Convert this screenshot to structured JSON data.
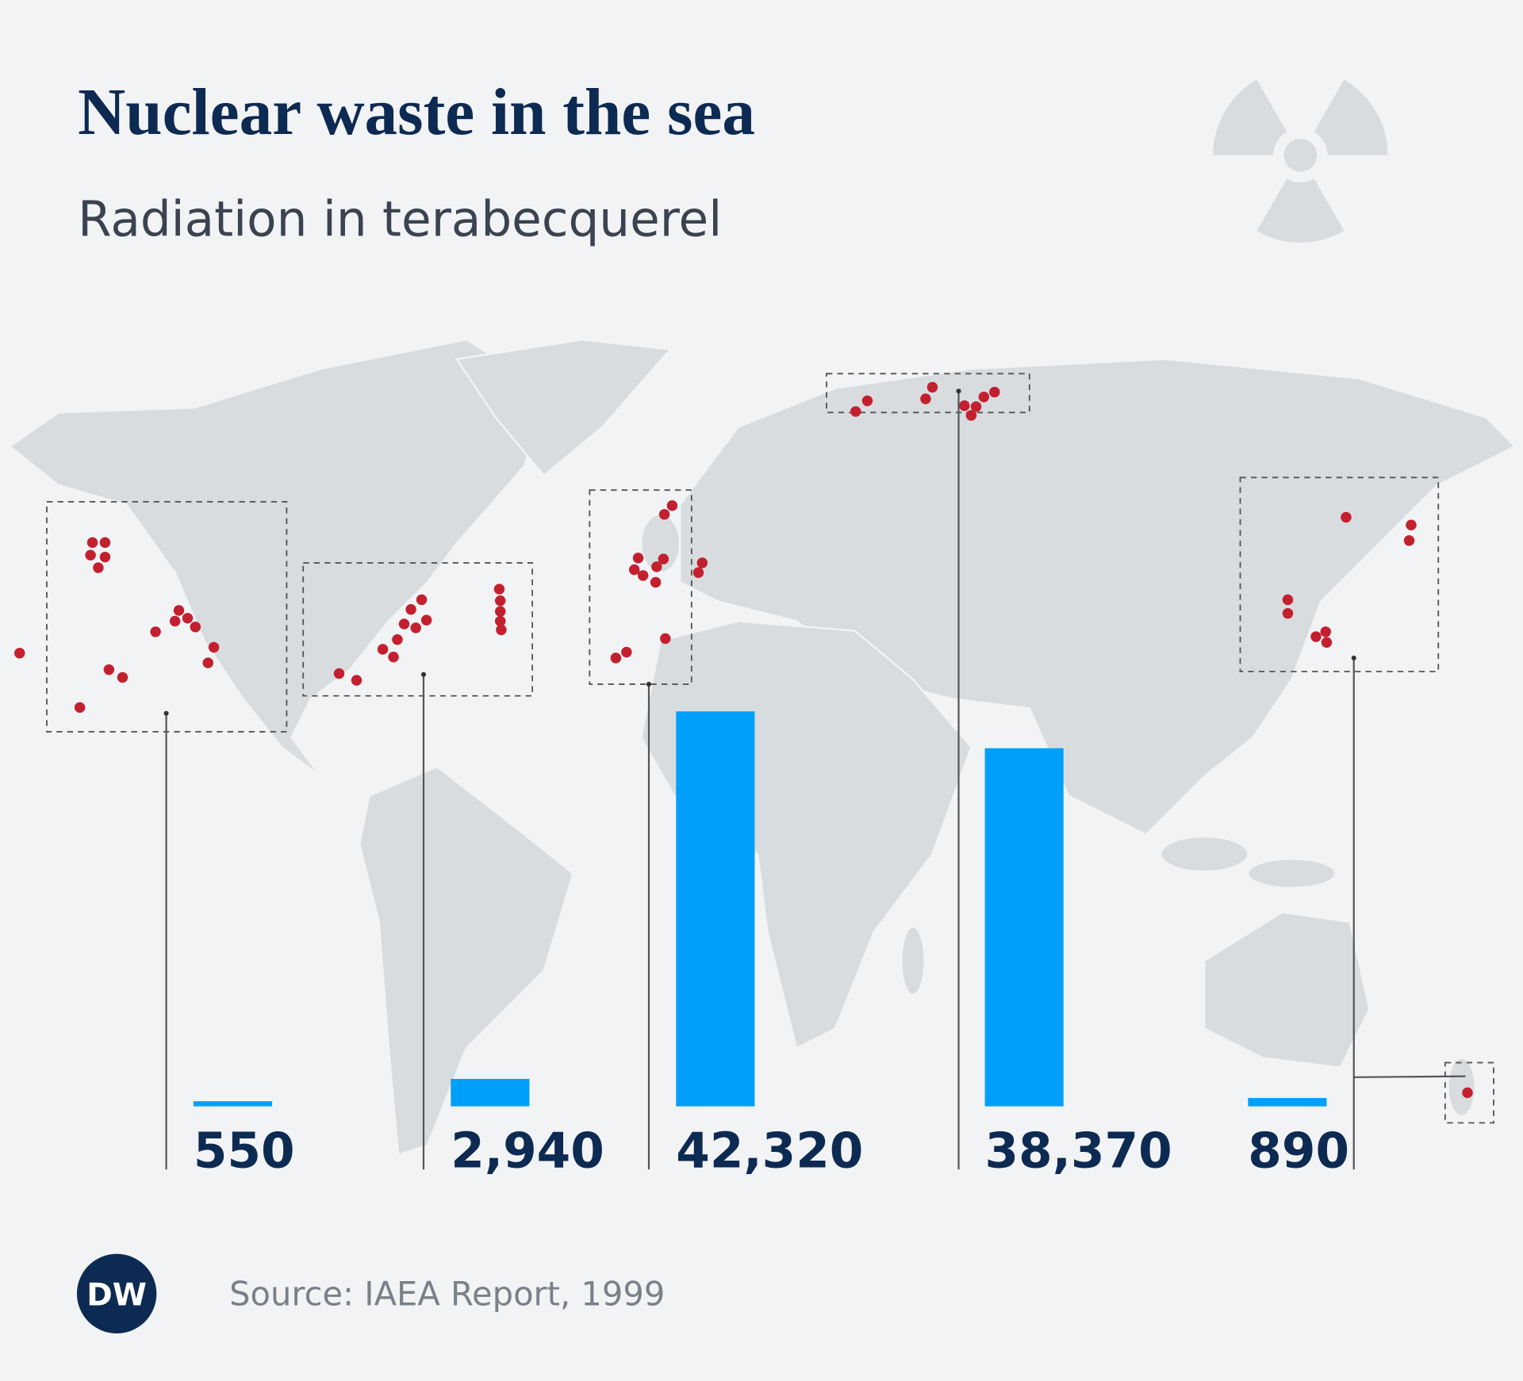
{
  "chart_data": {
    "type": "bar",
    "title": "Nuclear waste in the sea",
    "subtitle": "Radiation in terabecquerel",
    "values": [
      550,
      2940,
      42320,
      38370,
      890
    ],
    "value_labels": [
      "550",
      "2,940",
      "42,320",
      "38,370",
      "890"
    ],
    "color": "#00a0fa",
    "source": "Source: IAEA Report, 1999"
  },
  "logo": "DW"
}
